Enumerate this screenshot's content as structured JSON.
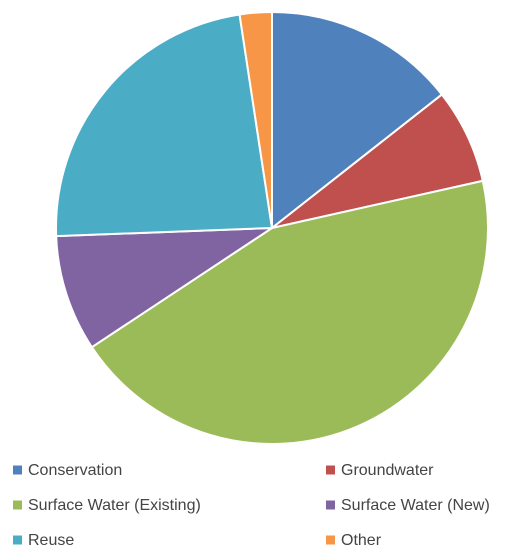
{
  "chart_data": {
    "type": "pie",
    "categories": [
      "Conservation",
      "Groundwater",
      "Surface Water (Existing)",
      "Surface Water (New)",
      "Reuse",
      "Other"
    ],
    "values": [
      14.4,
      7.1,
      44.2,
      8.7,
      23.2,
      2.4
    ],
    "colors": [
      "#4f81bd",
      "#c0504d",
      "#9bbb59",
      "#8064a2",
      "#4bacc6",
      "#f79646"
    ],
    "legend": "bottom"
  }
}
